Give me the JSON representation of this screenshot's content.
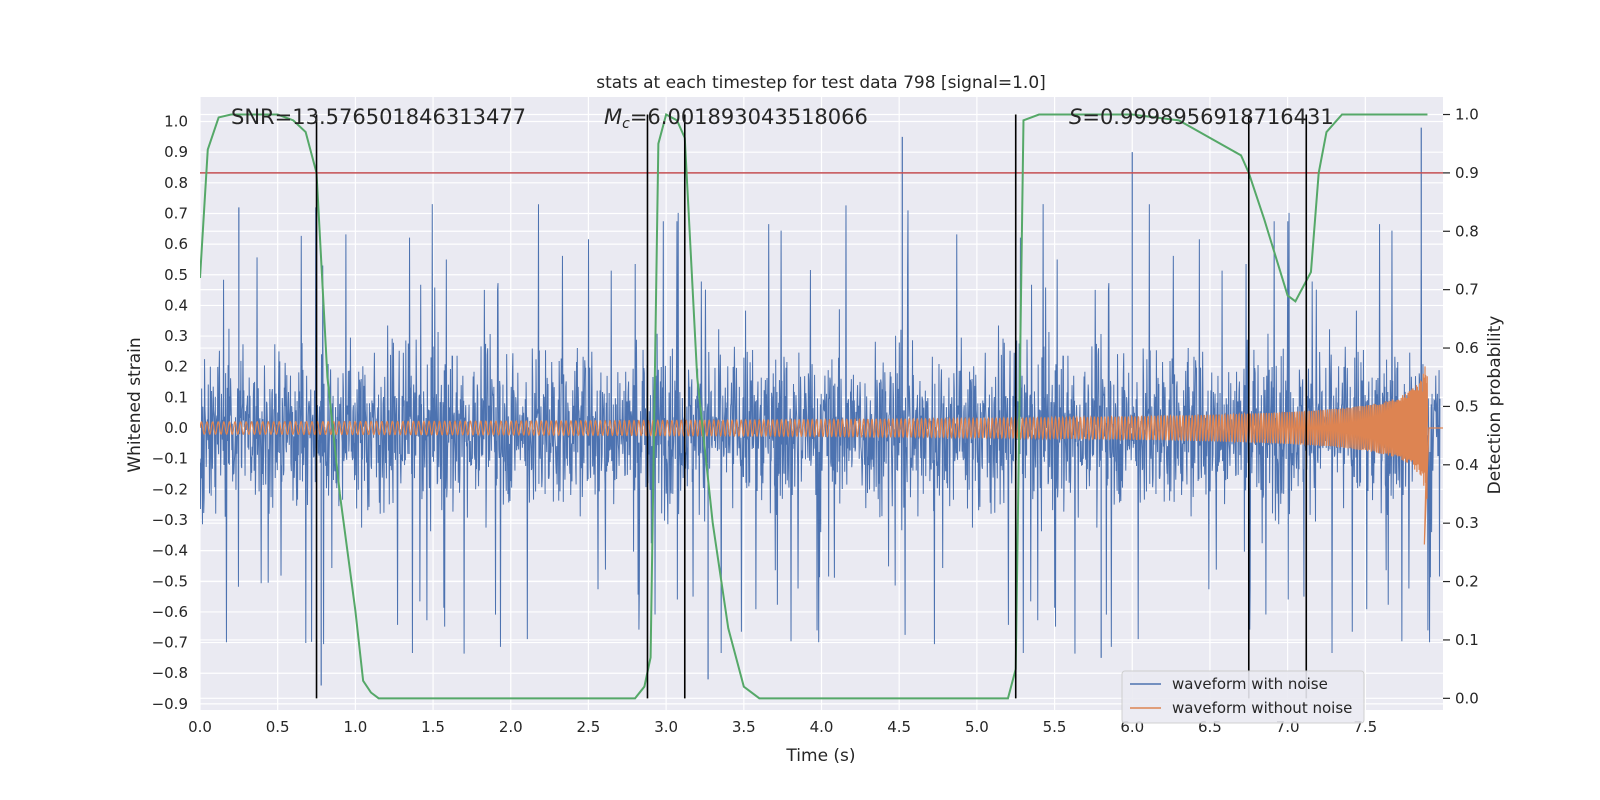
{
  "chart_data": {
    "type": "line",
    "title": "stats at each timestep for test data 798 [signal=1.0]",
    "xlabel": "Time (s)",
    "ylabel": "Whitened strain",
    "ylabel_right": "Detection probability",
    "xlim": [
      0.0,
      8.0
    ],
    "ylim": [
      -0.92,
      1.08
    ],
    "ylim_right": [
      -0.02,
      1.03
    ],
    "grid": true,
    "legend_position": "lower right",
    "x_ticks": [
      "0.0",
      "0.5",
      "1.0",
      "1.5",
      "2.0",
      "2.5",
      "3.0",
      "3.5",
      "4.0",
      "4.5",
      "5.0",
      "5.5",
      "6.0",
      "6.5",
      "7.0",
      "7.5"
    ],
    "y_ticks": [
      "1.0",
      "0.9",
      "0.8",
      "0.7",
      "0.6",
      "0.5",
      "0.4",
      "0.3",
      "0.2",
      "0.1",
      "0.0",
      "−0.1",
      "−0.2",
      "−0.3",
      "−0.4",
      "−0.5",
      "−0.6",
      "−0.7",
      "−0.8",
      "−0.9"
    ],
    "y_ticks_right": [
      "1.0",
      "0.9",
      "0.8",
      "0.7",
      "0.6",
      "0.5",
      "0.4",
      "0.3",
      "0.2",
      "0.1",
      "0.0"
    ],
    "annotations": {
      "snr": "SNR=13.576501846313477",
      "mc_symbol": "M",
      "mc_sub": "c",
      "mc_value": "=6.001893043518066",
      "s_symbol": "S",
      "s_value": "=0.9998956918716431"
    },
    "threshold": {
      "value": 0.9,
      "axis": "right",
      "color": "#c44e52"
    },
    "vertical_lines_x": [
      0.75,
      2.88,
      3.12,
      5.25,
      6.75,
      7.12
    ],
    "series": [
      {
        "name": "waveform with noise",
        "color": "#4c72b0",
        "kind": "noise",
        "amplitude_rms": 0.18,
        "max": 0.95,
        "min": -0.84
      },
      {
        "name": "waveform without noise",
        "color": "#dd8452",
        "kind": "chirp",
        "start_amplitude": 0.02,
        "peak_amplitude": 0.24,
        "peak_min": -0.38,
        "end_time": 7.9
      },
      {
        "name": "",
        "color": "#55a868",
        "axis": "right",
        "kind": "probability",
        "x": [
          0.0,
          0.05,
          0.12,
          0.2,
          0.3,
          0.4,
          0.5,
          0.6,
          0.68,
          0.75,
          0.82,
          0.9,
          1.0,
          1.05,
          1.1,
          1.15,
          1.5,
          2.0,
          2.5,
          2.8,
          2.86,
          2.9,
          2.95,
          3.0,
          3.07,
          3.12,
          3.2,
          3.3,
          3.4,
          3.5,
          3.6,
          4.0,
          4.5,
          5.0,
          5.2,
          5.25,
          5.3,
          5.4,
          5.6,
          6.0,
          6.3,
          6.5,
          6.7,
          6.75,
          6.85,
          7.0,
          7.05,
          7.15,
          7.2,
          7.25,
          7.35,
          7.5,
          7.9
        ],
        "y": [
          0.72,
          0.94,
          0.995,
          1.0,
          1.0,
          1.0,
          1.0,
          0.99,
          0.97,
          0.9,
          0.55,
          0.35,
          0.15,
          0.03,
          0.01,
          0.0,
          0.0,
          0.0,
          0.0,
          0.0,
          0.02,
          0.07,
          0.95,
          1.0,
          0.99,
          0.96,
          0.55,
          0.3,
          0.12,
          0.02,
          0.0,
          0.0,
          0.0,
          0.0,
          0.0,
          0.05,
          0.99,
          1.0,
          1.0,
          1.0,
          0.99,
          0.96,
          0.93,
          0.9,
          0.82,
          0.69,
          0.68,
          0.73,
          0.9,
          0.97,
          1.0,
          1.0,
          1.0
        ]
      }
    ]
  }
}
